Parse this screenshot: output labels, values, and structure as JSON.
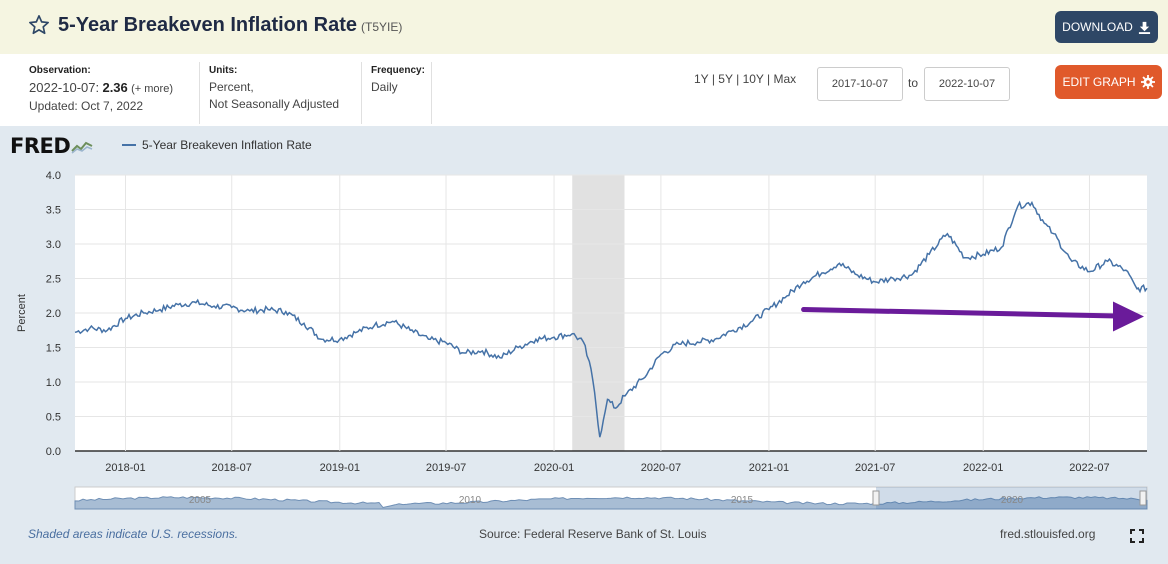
{
  "header": {
    "title": "5-Year Breakeven Inflation Rate",
    "series_id": "(T5YIE)",
    "download_label": "DOWNLOAD",
    "edit_label": "EDIT GRAPH"
  },
  "observation": {
    "label": "Observation:",
    "date": "2022-10-07:",
    "value": "2.36",
    "more": "(+ more)",
    "updated": "Updated: Oct 7, 2022"
  },
  "units": {
    "label": "Units:",
    "line1": "Percent,",
    "line2": "Not Seasonally Adjusted"
  },
  "frequency": {
    "label": "Frequency:",
    "value": "Daily"
  },
  "range_links": [
    "1Y",
    "5Y",
    "10Y",
    "Max"
  ],
  "range_sep": "|",
  "date_range": {
    "start": "2017-10-07",
    "to": "to",
    "end": "2022-10-07"
  },
  "logo": "FRED",
  "legend": "5-Year Breakeven Inflation Rate",
  "footer": {
    "note": "Shaded areas indicate U.S. recessions.",
    "source": "Source: Federal Reserve Bank of St. Louis",
    "url": "fred.stlouisfed.org"
  },
  "colors": {
    "line": "#4572a7",
    "arrow": "#6a1b9a",
    "recession": "#e1e1e1",
    "header_bg": "#f5f5e1",
    "graph_bg": "#e1e9f0"
  },
  "chart_data": {
    "type": "line",
    "title": "",
    "xlabel": "",
    "ylabel": "Percent",
    "ylim": [
      0,
      4
    ],
    "yticks": [
      "0.0",
      "0.5",
      "1.0",
      "1.5",
      "2.0",
      "2.5",
      "3.0",
      "3.5",
      "4.0"
    ],
    "xlim": [
      "2017-10-07",
      "2022-10-07"
    ],
    "xticks": [
      "2018-01",
      "2018-07",
      "2019-01",
      "2019-07",
      "2020-01",
      "2020-07",
      "2021-01",
      "2021-07",
      "2022-01",
      "2022-07"
    ],
    "grid": true,
    "legend": "top-left",
    "recession": {
      "start": "2020-02-01",
      "end": "2020-04-30"
    },
    "navigator_labels": [
      "2005",
      "2010",
      "2015",
      "2020"
    ],
    "annotation": {
      "type": "arrow",
      "from": [
        "2021-03-01",
        2.05
      ],
      "to": [
        "2022-10-07",
        1.95
      ]
    },
    "series": [
      {
        "name": "5-Year Breakeven Inflation Rate",
        "x": [
          "2017-10-07",
          "2017-11-01",
          "2017-12-01",
          "2018-01-01",
          "2018-02-01",
          "2018-03-01",
          "2018-04-01",
          "2018-05-01",
          "2018-06-01",
          "2018-07-01",
          "2018-08-01",
          "2018-09-01",
          "2018-10-01",
          "2018-11-01",
          "2018-12-01",
          "2019-01-01",
          "2019-02-01",
          "2019-03-01",
          "2019-04-01",
          "2019-05-01",
          "2019-06-01",
          "2019-07-01",
          "2019-08-01",
          "2019-09-01",
          "2019-10-01",
          "2019-11-01",
          "2019-12-01",
          "2020-01-01",
          "2020-02-01",
          "2020-02-20",
          "2020-03-01",
          "2020-03-10",
          "2020-03-19",
          "2020-03-25",
          "2020-04-01",
          "2020-04-15",
          "2020-05-01",
          "2020-06-01",
          "2020-07-01",
          "2020-08-01",
          "2020-09-01",
          "2020-10-01",
          "2020-11-01",
          "2020-12-01",
          "2021-01-01",
          "2021-02-01",
          "2021-03-01",
          "2021-04-01",
          "2021-05-01",
          "2021-06-01",
          "2021-07-01",
          "2021-08-01",
          "2021-09-01",
          "2021-10-01",
          "2021-11-01",
          "2021-12-01",
          "2022-01-01",
          "2022-02-01",
          "2022-03-01",
          "2022-03-25",
          "2022-04-15",
          "2022-05-01",
          "2022-06-01",
          "2022-07-01",
          "2022-08-01",
          "2022-09-01",
          "2022-09-20",
          "2022-10-07"
        ],
        "y": [
          1.72,
          1.78,
          1.75,
          1.92,
          2.0,
          2.05,
          2.12,
          2.15,
          2.1,
          2.08,
          2.03,
          2.05,
          2.02,
          1.85,
          1.62,
          1.62,
          1.73,
          1.82,
          1.88,
          1.75,
          1.62,
          1.57,
          1.42,
          1.45,
          1.35,
          1.5,
          1.62,
          1.65,
          1.7,
          1.58,
          1.3,
          0.85,
          0.2,
          0.45,
          0.75,
          0.62,
          0.8,
          1.05,
          1.4,
          1.55,
          1.58,
          1.62,
          1.75,
          1.87,
          2.05,
          2.25,
          2.45,
          2.58,
          2.72,
          2.55,
          2.45,
          2.5,
          2.55,
          2.85,
          3.15,
          2.8,
          2.85,
          2.95,
          3.55,
          3.6,
          3.3,
          3.15,
          2.75,
          2.6,
          2.75,
          2.62,
          2.35,
          2.36
        ]
      }
    ]
  }
}
